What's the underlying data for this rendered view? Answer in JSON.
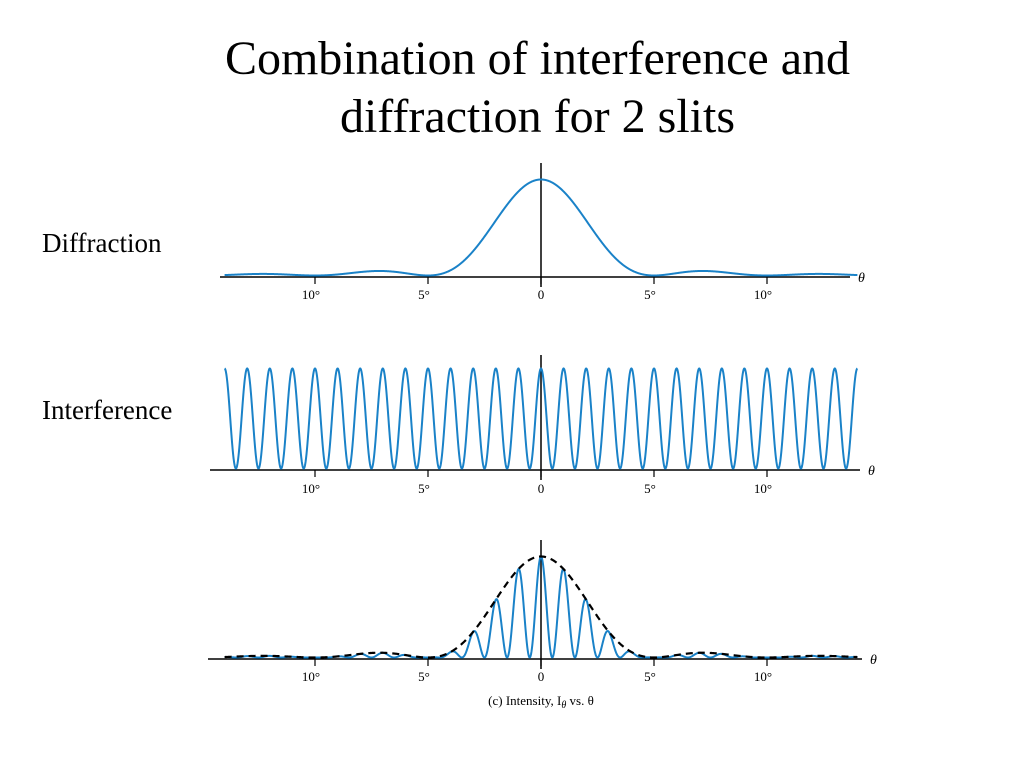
{
  "slide": {
    "title_line1": "Combination of interference and",
    "title_line2": "diffraction for 2 slits",
    "diffraction_label": "Diffraction",
    "interference_label": "Interference"
  },
  "colors": {
    "curve": "#1a82c8",
    "envelope": "#000000",
    "axis": "#000000"
  },
  "chart_data": [
    {
      "type": "line",
      "title": "",
      "xlabel": "θ",
      "ylabel": "",
      "x_tick_labels": [
        "10°",
        "5°",
        "0",
        "5°",
        "10°"
      ],
      "x_tick_positions_deg": [
        -10,
        -5,
        0,
        5,
        10
      ],
      "xlim": [
        -14,
        14
      ],
      "ylim": [
        0,
        1
      ],
      "series": [
        {
          "function": "single-slit diffraction intensity",
          "first_zero_deg": 5,
          "central_max": 1.0,
          "secondary_max_approx": 0.047
        }
      ]
    },
    {
      "type": "line",
      "title": "",
      "xlabel": "θ",
      "ylabel": "",
      "x_tick_labels": [
        "10°",
        "5°",
        "0",
        "5°",
        "10°"
      ],
      "x_tick_positions_deg": [
        -10,
        -5,
        0,
        5,
        10
      ],
      "xlim": [
        -14,
        14
      ],
      "ylim": [
        0,
        1
      ],
      "series": [
        {
          "function": "two-slit interference intensity",
          "fringe_spacing_deg": 1,
          "max": 1.0,
          "min": 0.0
        }
      ]
    },
    {
      "type": "line",
      "title": "",
      "xlabel": "θ",
      "caption": "(c) Intensity, I",
      "caption_sub": "θ",
      "caption_tail": " vs. θ",
      "ylabel": "",
      "x_tick_labels": [
        "10°",
        "5°",
        "0",
        "5°",
        "10°"
      ],
      "x_tick_positions_deg": [
        -10,
        -5,
        0,
        5,
        10
      ],
      "xlim": [
        -14,
        14
      ],
      "ylim": [
        0,
        1
      ],
      "series": [
        {
          "function": "combined intensity (interference × diffraction)",
          "fringe_spacing_deg": 1,
          "first_envelope_zero_deg": 5
        },
        {
          "function": "diffraction envelope",
          "style": "dashed"
        }
      ]
    }
  ]
}
